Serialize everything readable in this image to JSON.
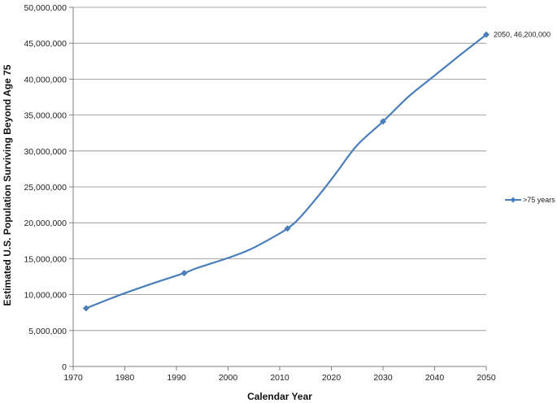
{
  "chart_data": {
    "type": "line",
    "xlabel": "Calendar Year",
    "ylabel": "Estimated U.S. Population Surviving Beyond Age 75",
    "xlim": [
      1970,
      2050
    ],
    "ylim": [
      0,
      50000000
    ],
    "x_ticks": [
      "1970",
      "1980",
      "1990",
      "2000",
      "2010",
      "2020",
      "2030",
      "2040",
      "2050"
    ],
    "x_tick_values": [
      1970,
      1980,
      1990,
      2000,
      2010,
      2020,
      2030,
      2040,
      2050
    ],
    "y_ticks": [
      "0",
      "5,000,000",
      "10,000,000",
      "15,000,000",
      "20,000,000",
      "25,000,000",
      "30,000,000",
      "35,000,000",
      "40,000,000",
      "45,000,000",
      "50,000,000"
    ],
    "y_tick_values": [
      0,
      5000000,
      10000000,
      15000000,
      20000000,
      25000000,
      30000000,
      35000000,
      40000000,
      45000000,
      50000000
    ],
    "grid": "horizontal",
    "legend_position": "right",
    "color": "#4a7ebb",
    "series": [
      {
        "name": ">75 years",
        "x": [
          1972.5,
          1976,
          1980,
          1986,
          1991.5,
          1994,
          2000,
          2004,
          2008,
          2011.5,
          2014,
          2018,
          2021,
          2025,
          2030,
          2035,
          2040,
          2045,
          2050
        ],
        "y": [
          8100000,
          9100000,
          10200000,
          11700000,
          13000000,
          13700000,
          15100000,
          16200000,
          17700000,
          19200000,
          20800000,
          24200000,
          27000000,
          30800000,
          34100000,
          37600000,
          40500000,
          43400000,
          46200000
        ],
        "marker_x": [
          1972.5,
          1991.5,
          2011.5,
          2030,
          2050
        ],
        "marker_y": [
          8100000,
          13000000,
          19200000,
          34100000,
          46200000
        ]
      }
    ],
    "annotations": [
      {
        "text": "2050, 46,200,000",
        "x": 2050,
        "y": 46200000
      }
    ]
  }
}
